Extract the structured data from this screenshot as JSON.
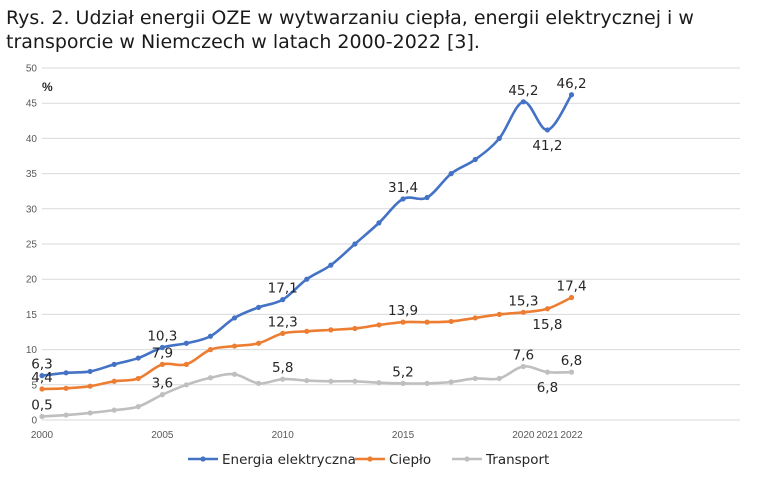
{
  "title": "Rys. 2. Udział energii OZE w wytwarzaniu ciepła, energii elektrycznej i w transporcie w Niemczech w latach 2000-2022 [3].",
  "chart_data": {
    "type": "line",
    "ylabel": "%",
    "ylim": [
      0,
      50
    ],
    "yticks": [
      0,
      5,
      10,
      15,
      20,
      25,
      30,
      35,
      40,
      45,
      50
    ],
    "xlim": [
      2000,
      2029
    ],
    "xticks": [
      2000,
      2005,
      2010,
      2015,
      2020,
      2021,
      2022
    ],
    "grid": true,
    "legend_position": "bottom",
    "x": [
      2000,
      2001,
      2002,
      2003,
      2004,
      2005,
      2006,
      2007,
      2008,
      2009,
      2010,
      2011,
      2012,
      2013,
      2014,
      2015,
      2016,
      2017,
      2018,
      2019,
      2020,
      2021,
      2022
    ],
    "series": [
      {
        "name": "Energia elektryczna",
        "color": "#4472c4",
        "values": [
          6.3,
          6.7,
          6.9,
          7.9,
          8.8,
          10.3,
          10.9,
          11.9,
          14.5,
          16.0,
          17.1,
          20.0,
          22.0,
          25.0,
          28.0,
          31.4,
          31.6,
          35.0,
          37.0,
          40.0,
          45.2,
          41.2,
          46.2
        ],
        "labels": [
          {
            "x": 2000,
            "text": "6,3",
            "pos": "above"
          },
          {
            "x": 2005,
            "text": "10,3",
            "pos": "above"
          },
          {
            "x": 2010,
            "text": "17,1",
            "pos": "above"
          },
          {
            "x": 2015,
            "text": "31,4",
            "pos": "above"
          },
          {
            "x": 2020,
            "text": "45,2",
            "pos": "above"
          },
          {
            "x": 2021,
            "text": "41,2",
            "pos": "below"
          },
          {
            "x": 2022,
            "text": "46,2",
            "pos": "above"
          }
        ]
      },
      {
        "name": "Ciepło",
        "color": "#ed7d31",
        "values": [
          4.4,
          4.5,
          4.8,
          5.5,
          5.9,
          7.9,
          7.9,
          10.0,
          10.5,
          10.9,
          12.3,
          12.6,
          12.8,
          13.0,
          13.5,
          13.9,
          13.9,
          14.0,
          14.5,
          15.0,
          15.3,
          15.8,
          17.4
        ],
        "labels": [
          {
            "x": 2000,
            "text": "4,4",
            "pos": "above"
          },
          {
            "x": 2005,
            "text": "7,9",
            "pos": "above"
          },
          {
            "x": 2010,
            "text": "12,3",
            "pos": "above"
          },
          {
            "x": 2015,
            "text": "13,9",
            "pos": "above"
          },
          {
            "x": 2020,
            "text": "15,3",
            "pos": "above"
          },
          {
            "x": 2021,
            "text": "15,8",
            "pos": "below"
          },
          {
            "x": 2022,
            "text": "17,4",
            "pos": "above"
          }
        ]
      },
      {
        "name": "Transport",
        "color": "#bfbfbf",
        "values": [
          0.5,
          0.7,
          1.0,
          1.4,
          1.9,
          3.6,
          5.0,
          6.0,
          6.5,
          5.2,
          5.8,
          5.6,
          5.5,
          5.5,
          5.3,
          5.2,
          5.2,
          5.4,
          5.9,
          5.9,
          7.6,
          6.8,
          6.8
        ],
        "labels": [
          {
            "x": 2000,
            "text": "0,5",
            "pos": "above"
          },
          {
            "x": 2005,
            "text": "3,6",
            "pos": "above"
          },
          {
            "x": 2010,
            "text": "5,8",
            "pos": "above"
          },
          {
            "x": 2015,
            "text": "5,2",
            "pos": "above"
          },
          {
            "x": 2020,
            "text": "7,6",
            "pos": "above"
          },
          {
            "x": 2021,
            "text": "6,8",
            "pos": "below"
          },
          {
            "x": 2022,
            "text": "6,8",
            "pos": "above"
          }
        ]
      }
    ]
  }
}
